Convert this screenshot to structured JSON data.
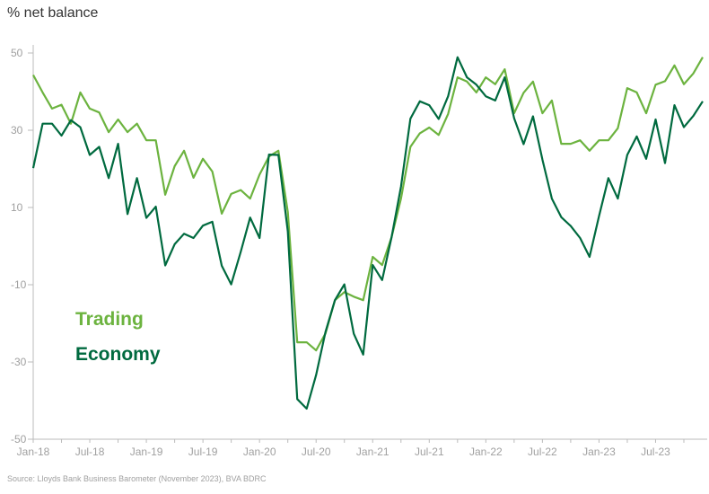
{
  "chart_data": {
    "type": "line",
    "ylabel": "% net balance",
    "ylim": [
      -50,
      50
    ],
    "yticks": [
      50,
      30,
      10,
      -10,
      -30,
      -50
    ],
    "xtick_labels": [
      "Jan-18",
      "Jul-18",
      "Jan-19",
      "Jul-19",
      "Jan-20",
      "Jul-20",
      "Jan-21",
      "Jul-21",
      "Jan-22",
      "Jul-22",
      "Jan-23",
      "Jul-23"
    ],
    "xtick_every": 6,
    "grid": false,
    "legend_placement": "left-middle",
    "series": [
      {
        "name": "Trading",
        "color": "#6cb33f",
        "values": [
          44.3,
          39.8,
          35.6,
          36.6,
          31.7,
          39.8,
          35.6,
          34.6,
          29.5,
          32.8,
          29.5,
          31.7,
          27.4,
          27.4,
          13.3,
          20.7,
          24.7,
          17.7,
          22.6,
          19.3,
          8.4,
          13.5,
          14.5,
          12.3,
          18.5,
          23.2,
          24.7,
          8.8,
          -24.9,
          -24.9,
          -27.0,
          -22.6,
          -14.0,
          -11.9,
          -13.1,
          -14.0,
          -2.8,
          -4.9,
          2.3,
          12.3,
          25.7,
          29.2,
          30.7,
          28.8,
          34.2,
          43.7,
          42.6,
          39.8,
          43.7,
          41.9,
          45.8,
          34.4,
          39.7,
          42.6,
          34.4,
          37.7,
          26.5,
          26.5,
          27.4,
          24.7,
          27.4,
          27.4,
          30.5,
          40.9,
          39.8,
          34.4,
          41.8,
          42.7,
          46.8,
          41.9,
          44.7,
          48.9
        ]
      },
      {
        "name": "Economy",
        "color": "#006a3f",
        "values": [
          20.2,
          31.7,
          31.7,
          28.6,
          32.6,
          30.8,
          23.6,
          25.7,
          17.6,
          26.5,
          8.3,
          17.6,
          7.3,
          10.2,
          -5.0,
          0.5,
          3.2,
          2.1,
          5.3,
          6.3,
          -5.1,
          -9.9,
          -1.5,
          7.4,
          2.1,
          23.7,
          23.6,
          3.8,
          -39.6,
          -42.1,
          -33.4,
          -22.2,
          -14.0,
          -9.9,
          -22.7,
          -28.1,
          -4.9,
          -8.8,
          2.3,
          15.4,
          33.0,
          37.5,
          36.5,
          32.9,
          38.8,
          48.9,
          43.7,
          41.8,
          38.8,
          37.7,
          43.7,
          33.1,
          26.4,
          33.6,
          22.4,
          12.3,
          7.5,
          5.2,
          2.1,
          -2.8,
          7.7,
          17.6,
          12.3,
          23.6,
          28.4,
          22.6,
          32.8,
          21.5,
          36.5,
          30.8,
          33.7,
          37.5
        ]
      }
    ],
    "source": "Source: Lloyds Bank Business Barometer (November 2023), BVA BDRC"
  }
}
